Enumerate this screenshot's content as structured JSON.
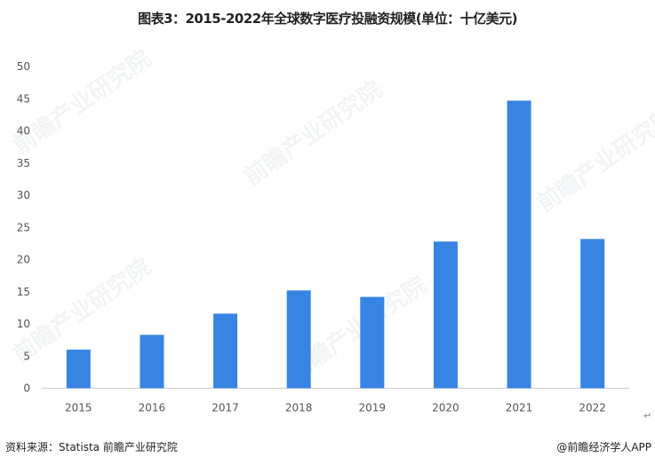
{
  "chart_data": {
    "type": "bar",
    "title": "图表3：2015-2022年全球数字医疗投融资规模(单位：十亿美元)",
    "categories": [
      "2015",
      "2016",
      "2017",
      "2018",
      "2019",
      "2020",
      "2021",
      "2022"
    ],
    "values": [
      6.0,
      8.3,
      11.6,
      15.2,
      14.2,
      22.8,
      44.7,
      23.2
    ],
    "ylim": [
      0,
      50
    ],
    "yticks": [
      0,
      5,
      10,
      15,
      20,
      25,
      30,
      35,
      40,
      45,
      50
    ],
    "grid": false,
    "bar_color": "#3884e3",
    "xlabel": "",
    "ylabel": ""
  },
  "footer": {
    "source": "资料来源：Statista 前瞻产业研究院",
    "credit": "@前瞻经济学人APP"
  },
  "watermark": "前瞻产业研究院"
}
